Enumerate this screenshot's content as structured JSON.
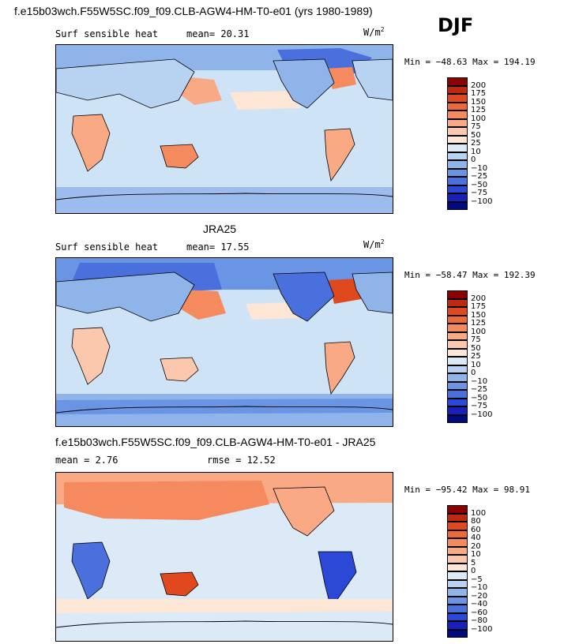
{
  "header": {
    "top_title": "f.e15b03wch.F55W5SC.f09_f09.CLB-AGW4-HM-T0-e01 (yrs 1980-1989)",
    "season": "DJF"
  },
  "panels": [
    {
      "id": "model",
      "field_label": "Surf sensible heat",
      "stat_text": "mean=  20.31",
      "units_base": "W/m",
      "units_exp": "2",
      "minmax": "Min = −48.63 Max = 194.19",
      "colorbar": {
        "levels": [
          "200",
          "175",
          "150",
          "125",
          "100",
          "75",
          "50",
          "25",
          "10",
          "0",
          "−10",
          "−25",
          "−50",
          "−75",
          "−100"
        ],
        "colors": [
          "#8b0000",
          "#c0280f",
          "#e0481e",
          "#f0683a",
          "#f58a5e",
          "#f9aa85",
          "#fcc8ad",
          "#fde6d5",
          "#dceaf8",
          "#b8d3f1",
          "#8fb4ea",
          "#6a94e4",
          "#4a70dd",
          "#2b48d6",
          "#1720b8",
          "#000a80"
        ]
      }
    },
    {
      "id": "obs",
      "center_title": "JRA25",
      "field_label": "Surf sensible heat",
      "stat_text": "mean=  17.55",
      "units_base": "W/m",
      "units_exp": "2",
      "minmax": "Min = −58.47 Max = 192.39",
      "colorbar": {
        "levels": [
          "200",
          "175",
          "150",
          "125",
          "100",
          "75",
          "50",
          "25",
          "10",
          "0",
          "−10",
          "−25",
          "−50",
          "−75",
          "−100"
        ],
        "colors": [
          "#8b0000",
          "#c0280f",
          "#e0481e",
          "#f0683a",
          "#f58a5e",
          "#f9aa85",
          "#fcc8ad",
          "#fde6d5",
          "#dceaf8",
          "#b8d3f1",
          "#8fb4ea",
          "#6a94e4",
          "#4a70dd",
          "#2b48d6",
          "#1720b8",
          "#000a80"
        ]
      }
    },
    {
      "id": "diff",
      "center_title": "f.e15b03wch.F55W5SC.f09_f09.CLB-AGW4-HM-T0-e01 - JRA25",
      "stat_left": "mean =   2.76",
      "stat_right": "rmse =  12.52",
      "minmax": "Min = −95.42 Max =  98.91",
      "colorbar": {
        "levels": [
          "100",
          "80",
          "60",
          "40",
          "20",
          "10",
          "5",
          "0",
          "−5",
          "−10",
          "−20",
          "−40",
          "−60",
          "−80",
          "−100"
        ],
        "colors": [
          "#8b0000",
          "#c0280f",
          "#e0481e",
          "#f0683a",
          "#f58a5e",
          "#f9aa85",
          "#fcc8ad",
          "#fde6d5",
          "#dceaf8",
          "#b8d3f1",
          "#8fb4ea",
          "#6a94e4",
          "#4a70dd",
          "#2b48d6",
          "#1720b8",
          "#000a80"
        ]
      }
    }
  ]
}
